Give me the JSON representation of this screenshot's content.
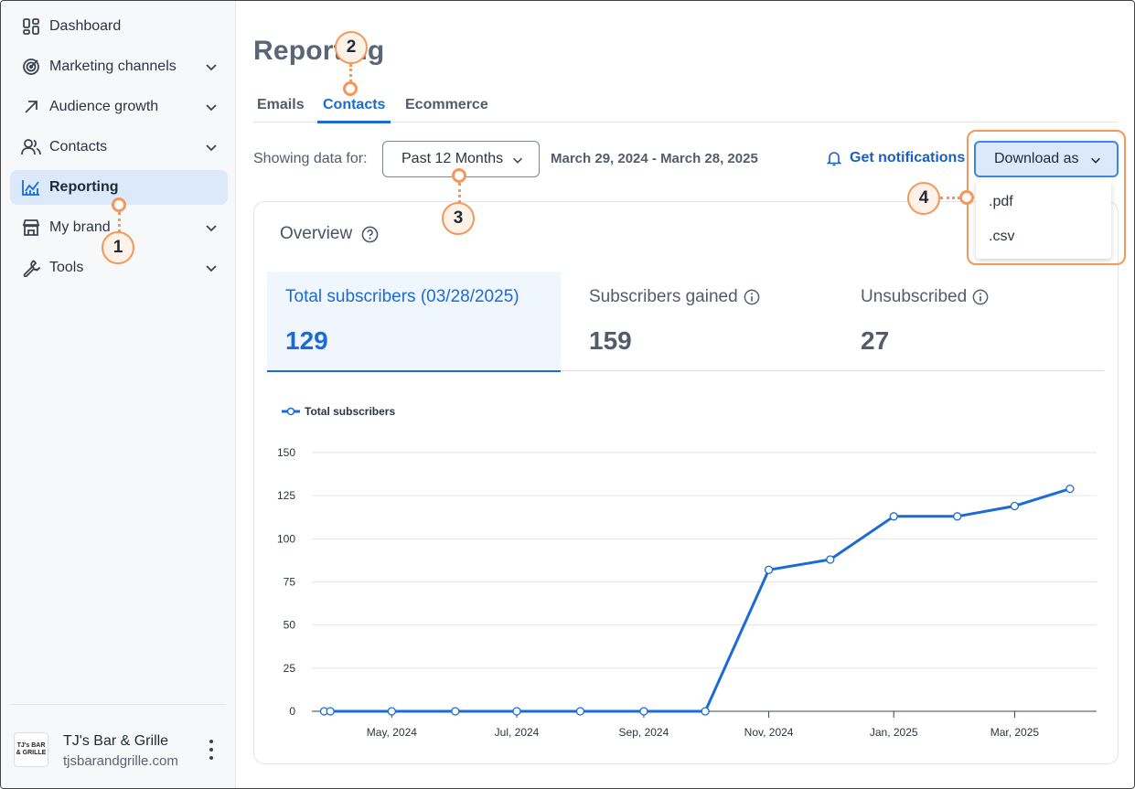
{
  "sidebar": {
    "items": [
      {
        "label": "Dashboard",
        "icon": "dashboard-icon"
      },
      {
        "label": "Marketing channels",
        "icon": "target-icon"
      },
      {
        "label": "Audience growth",
        "icon": "arrow-up-right-icon"
      },
      {
        "label": "Contacts",
        "icon": "people-icon"
      },
      {
        "label": "Reporting",
        "icon": "chart-icon"
      },
      {
        "label": "My brand",
        "icon": "store-icon"
      },
      {
        "label": "Tools",
        "icon": "wrench-icon"
      }
    ],
    "footer": {
      "logo_text": "TJ's BAR & GRILLE",
      "name": "TJ's Bar & Grille",
      "url": "tjsbarandgrille.com"
    }
  },
  "header": {
    "title": "Reporting",
    "tabs": [
      "Emails",
      "Contacts",
      "Ecommerce"
    ],
    "active_tab": "Contacts"
  },
  "filters": {
    "showing_label": "Showing data for:",
    "range_value": "Past 12 Months",
    "date_range": "March 29, 2024 - March 28, 2025",
    "notifications_label": "Get notifications",
    "download_label": "Download as",
    "download_options": [
      ".pdf",
      ".csv"
    ]
  },
  "overview": {
    "title": "Overview",
    "stats": [
      {
        "label": "Total subscribers (03/28/2025)",
        "value": "129"
      },
      {
        "label": "Subscribers gained",
        "value": "159"
      },
      {
        "label": "Unsubscribed",
        "value": "27"
      }
    ],
    "legend": "Total subscribers"
  },
  "callouts": [
    "1",
    "2",
    "3",
    "4"
  ],
  "colors": {
    "accent": "#1a6bd6",
    "callout": "#f4975a",
    "active_bg": "#dbe9fb"
  },
  "chart_data": {
    "type": "line",
    "title": "",
    "series": [
      {
        "name": "Total subscribers",
        "x": [
          "2024-03-29",
          "2024-04-01",
          "2024-05-01",
          "2024-06-01",
          "2024-07-01",
          "2024-08-01",
          "2024-09-01",
          "2024-10-01",
          "2024-11-01",
          "2024-12-01",
          "2025-01-01",
          "2025-02-01",
          "2025-03-01",
          "2025-03-28"
        ],
        "values": [
          0,
          0,
          0,
          0,
          0,
          0,
          0,
          0,
          82,
          88,
          113,
          113,
          119,
          129
        ]
      }
    ],
    "ylim": [
      0,
      150
    ],
    "yticks": [
      0,
      25,
      50,
      75,
      100,
      125,
      150
    ],
    "xtick_labels": [
      "May, 2024",
      "Jul, 2024",
      "Sep, 2024",
      "Nov, 2024",
      "Jan, 2025",
      "Mar, 2025"
    ],
    "xtick_positions": [
      "2024-05-01",
      "2024-07-01",
      "2024-09-01",
      "2024-11-01",
      "2025-01-01",
      "2025-03-01"
    ],
    "xlim": [
      "2024-03-23",
      "2025-04-10"
    ],
    "xlabel": "",
    "ylabel": "",
    "grid": true
  }
}
